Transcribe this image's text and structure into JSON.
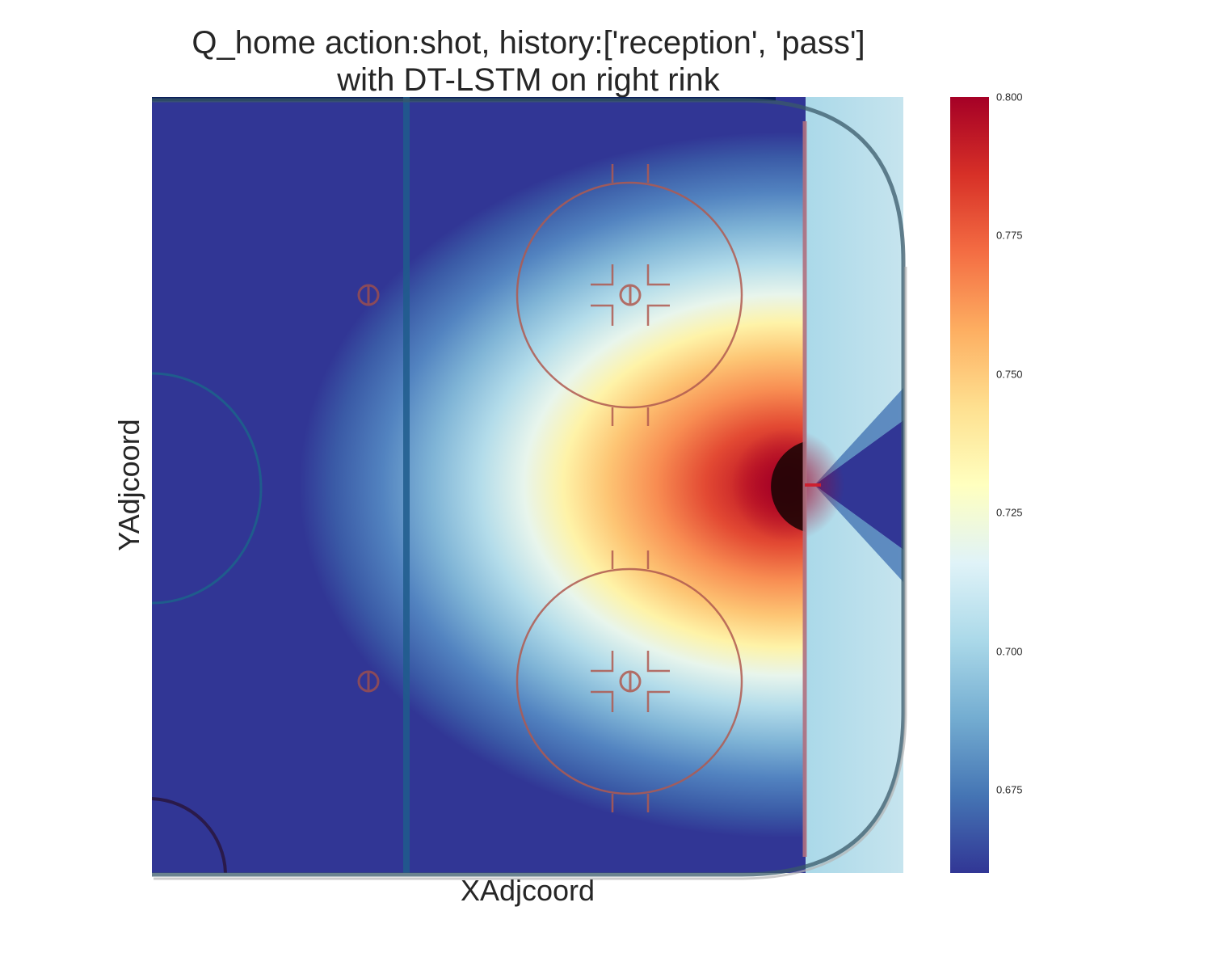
{
  "chart_data": {
    "type": "heatmap",
    "title_lines": [
      "Q_home action:shot, history:['reception', 'pass']",
      "with DT-LSTM on right rink"
    ],
    "xlabel": "XAdjcoord",
    "ylabel": "YAdjcoord",
    "colormap": "RdYlBu_r",
    "colorbar": {
      "range": [
        0.66,
        0.8
      ],
      "ticks": [
        0.8,
        0.775,
        0.75,
        0.725,
        0.7,
        0.675
      ],
      "tick_labels": [
        "0.800",
        "0.775",
        "0.750",
        "0.725",
        "0.700",
        "0.675"
      ],
      "colors": [
        "#313695",
        "#4575b4",
        "#74add1",
        "#abd9e9",
        "#e0f3f8",
        "#ffffbf",
        "#fee090",
        "#fdae61",
        "#f46d43",
        "#d73027",
        "#a50026"
      ]
    },
    "peak_region": "right of the goal line, centered on the net",
    "rink_line_colors": {
      "blue_line": "#1f5c8c",
      "goal_line": "#b07080",
      "faceoff": "#b05a50",
      "boards": "#3a5a6a"
    }
  }
}
